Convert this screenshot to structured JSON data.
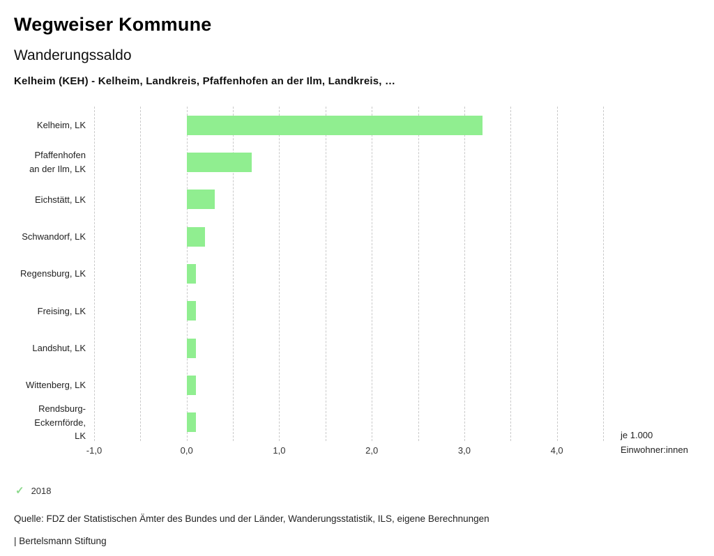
{
  "header": {
    "title": "Wegweiser Kommune",
    "subtitle": "Wanderungssaldo",
    "description": "Kelheim (KEH) - Kelheim, Landkreis, Pfaffenhofen an der Ilm, Landkreis, …"
  },
  "chart_data": {
    "type": "bar",
    "orientation": "horizontal",
    "title": "Wanderungssaldo",
    "categories": [
      "Kelheim, LK",
      "Pfaffenhofen\nan der Ilm, LK",
      "Eichstätt, LK",
      "Schwandorf, LK",
      "Regensburg, LK",
      "Freising, LK",
      "Landshut, LK",
      "Wittenberg, LK",
      "Rendsburg-\nEckernförde,\nLK"
    ],
    "series": [
      {
        "name": "2018",
        "values": [
          3.2,
          0.7,
          0.3,
          0.2,
          0.1,
          0.1,
          0.1,
          0.1,
          0.1
        ]
      }
    ],
    "xlim": [
      -1.0,
      4.5
    ],
    "grid": true,
    "grid_step": 0.5,
    "ticks": [
      {
        "value": -1,
        "label": "-1,0"
      },
      {
        "value": 0,
        "label": "0,0"
      },
      {
        "value": 1,
        "label": "1,0"
      },
      {
        "value": 2,
        "label": "2,0"
      },
      {
        "value": 3,
        "label": "3,0"
      },
      {
        "value": 4,
        "label": "4,0"
      }
    ],
    "xlabel": "je 1.000 Einwohner:innen",
    "legend_position": "bottom-left",
    "bar_color": "#90ee90"
  },
  "axis_unit": {
    "line1": "je 1.000",
    "line2": "Einwohner:innen"
  },
  "legend": {
    "year": "2018",
    "check_icon": "✓",
    "check_color": "#8cd98c"
  },
  "footer": {
    "source": "Quelle: FDZ der Statistischen Ämter des Bundes und der Länder, Wanderungsstatistik, ILS, eigene Berechnungen",
    "branding": "| Bertelsmann Stiftung"
  }
}
